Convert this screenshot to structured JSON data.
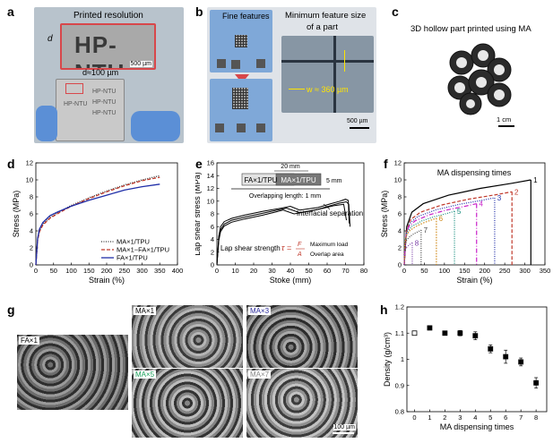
{
  "panels": {
    "a": {
      "label": "a",
      "title": "Printed resolution",
      "d_label": "d",
      "d_value": "d≈100 µm",
      "print_text": "HP-NTU",
      "scale": "500 µm",
      "plate_texts": [
        "HP-NTU",
        "HP-NTU",
        "HP-NTU",
        "HP-NTU"
      ]
    },
    "b": {
      "label": "b",
      "fine_features": "Fine features",
      "min_feature_title_1": "Minimum feature size",
      "min_feature_title_2": "of a part",
      "w_label": "w ≈ 360 µm",
      "scale": "500 µm"
    },
    "c": {
      "label": "c",
      "title": "3D hollow part printed using MA",
      "scale": "1 cm"
    },
    "g": {
      "label": "g",
      "images": [
        {
          "label": "FA×1",
          "color": "#000000"
        },
        {
          "label": "MA×1",
          "color": "#000000"
        },
        {
          "label": "MA×3",
          "color": "#2a2a9a"
        },
        {
          "label": "MA×5",
          "color": "#1aa05a"
        },
        {
          "label": "MA×7",
          "color": "#888888"
        }
      ],
      "scale": "100 µm"
    }
  },
  "chart_data": [
    {
      "panel": "d",
      "type": "line",
      "xlabel": "Strain (%)",
      "ylabel": "Stress (MPa)",
      "xlim": [
        0,
        400
      ],
      "ylim": [
        0,
        12
      ],
      "xticks": [
        0,
        50,
        100,
        150,
        200,
        250,
        300,
        350,
        400
      ],
      "yticks": [
        0,
        2,
        4,
        6,
        8,
        10,
        12
      ],
      "legend_position": "bottom-right",
      "series": [
        {
          "name": "MA×1/TPU",
          "color": "#333333",
          "dash": "1,1.5",
          "x": [
            0,
            5,
            10,
            20,
            40,
            60,
            100,
            150,
            200,
            250,
            300,
            350
          ],
          "y": [
            0,
            3.0,
            4.0,
            4.8,
            5.6,
            6.1,
            7.0,
            7.9,
            8.7,
            9.4,
            10.0,
            10.5
          ]
        },
        {
          "name": "MA×1−FA×1/TPU",
          "color": "#c0392b",
          "dash": "4,2",
          "x": [
            0,
            5,
            10,
            20,
            40,
            60,
            100,
            150,
            200,
            250,
            300,
            350
          ],
          "y": [
            0,
            2.9,
            3.9,
            4.7,
            5.5,
            6.0,
            6.9,
            7.8,
            8.6,
            9.3,
            9.9,
            10.3
          ]
        },
        {
          "name": "FA×1/TPU",
          "color": "#1f2ea8",
          "dash": "",
          "x": [
            0,
            5,
            10,
            20,
            40,
            60,
            100,
            150,
            200,
            250,
            300,
            350
          ],
          "y": [
            0,
            3.1,
            4.2,
            5.0,
            5.8,
            6.2,
            6.9,
            7.6,
            8.2,
            8.8,
            9.2,
            9.5
          ]
        }
      ]
    },
    {
      "panel": "e",
      "type": "line",
      "xlabel": "Stoke (mm)",
      "ylabel": "Lap shear stress (MPa)",
      "xlim": [
        0,
        80
      ],
      "ylim": [
        0,
        16
      ],
      "xticks": [
        0,
        10,
        20,
        30,
        40,
        50,
        60,
        70,
        80
      ],
      "yticks": [
        0,
        2,
        4,
        6,
        8,
        10,
        12,
        14,
        16
      ],
      "annotations": {
        "interfacial": "Interfacial separation",
        "lap_strength": "Lap shear strength",
        "formula_tau": "τ =",
        "formula_F": "F",
        "formula_A": "A",
        "max_load": "Maximum load",
        "overlap_area": "Overlap area",
        "overlap_length": "Overlapping length: 1 mm",
        "dim_20": "20 mm",
        "dim_5": "5 mm",
        "spec_left": "FA×1/TPU",
        "spec_right": "MA×1/TPU"
      },
      "series": [
        {
          "name": "curve-1",
          "color": "#000000",
          "x": [
            0,
            1,
            2,
            4,
            8,
            15,
            25,
            35,
            40,
            45,
            55,
            62,
            67,
            70,
            71.5,
            72
          ],
          "y": [
            0,
            4.5,
            6.0,
            6.8,
            7.3,
            7.8,
            8.4,
            8.9,
            9.2,
            8.6,
            9.0,
            9.6,
            10.0,
            10.3,
            10.1,
            6.5
          ]
        },
        {
          "name": "curve-2",
          "color": "#000000",
          "x": [
            0,
            1,
            2,
            4,
            8,
            15,
            25,
            33,
            38,
            45,
            55,
            62,
            67,
            70.5,
            71.8,
            72.5
          ],
          "y": [
            0,
            4.0,
            5.5,
            6.4,
            7.0,
            7.5,
            8.1,
            8.6,
            8.9,
            8.2,
            8.7,
            9.3,
            9.7,
            9.9,
            9.5,
            6.0
          ]
        },
        {
          "name": "curve-3",
          "color": "#000000",
          "x": [
            0,
            1,
            2,
            4,
            8,
            15,
            25,
            32,
            36,
            42,
            50,
            58,
            64,
            69,
            70.5
          ],
          "y": [
            0,
            3.8,
            5.2,
            6.1,
            6.7,
            7.2,
            7.8,
            8.3,
            8.6,
            8.0,
            8.4,
            8.9,
            9.3,
            9.5,
            7.0
          ]
        }
      ]
    },
    {
      "panel": "f",
      "type": "line",
      "title": "MA dispensing times",
      "xlabel": "Strain (%)",
      "ylabel": "Stress (MPa)",
      "xlim": [
        0,
        350
      ],
      "ylim": [
        0,
        12
      ],
      "xticks": [
        0,
        50,
        100,
        150,
        200,
        250,
        300,
        350
      ],
      "yticks": [
        0,
        2,
        4,
        6,
        8,
        10,
        12
      ],
      "series": [
        {
          "name": "1",
          "color": "#000000",
          "dash": "",
          "end_x": 315,
          "end_y": 10.0
        },
        {
          "name": "2",
          "color": "#c0392b",
          "dash": "4,2",
          "end_x": 268,
          "end_y": 8.6
        },
        {
          "name": "3",
          "color": "#1f2ea8",
          "dash": "1,1.5",
          "end_x": 225,
          "end_y": 7.9
        },
        {
          "name": "4",
          "color": "#c81fc8",
          "dash": "5,2,1,2",
          "end_x": 180,
          "end_y": 7.2
        },
        {
          "name": "5",
          "color": "#0f8a7a",
          "dash": "1,1.5",
          "end_x": 125,
          "end_y": 6.3
        },
        {
          "name": "6",
          "color": "#d08a1a",
          "dash": "1.5,1.5",
          "end_x": 80,
          "end_y": 5.5
        },
        {
          "name": "7",
          "color": "#444444",
          "dash": "1,1.5",
          "end_x": 42,
          "end_y": 4.1
        },
        {
          "name": "8",
          "color": "#7a3ea8",
          "dash": "1,1.5",
          "end_x": 20,
          "end_y": 2.6
        }
      ]
    },
    {
      "panel": "h",
      "type": "scatter",
      "xlabel": "MA dispensing times",
      "ylabel": "Density (g/cm³)",
      "xlim": [
        -0.5,
        8.7
      ],
      "ylim": [
        0.8,
        1.2
      ],
      "xticks": [
        0,
        1,
        2,
        3,
        4,
        5,
        6,
        7,
        8
      ],
      "yticks": [
        0.8,
        0.9,
        1.0,
        1.1,
        1.2
      ],
      "x": [
        0,
        1,
        2,
        3,
        4,
        5,
        6,
        7,
        8
      ],
      "y": [
        1.1,
        1.12,
        1.1,
        1.1,
        1.09,
        1.04,
        1.01,
        0.99,
        0.91
      ],
      "err": [
        0,
        0,
        0,
        0.01,
        0.015,
        0.015,
        0.025,
        0.015,
        0.02
      ],
      "open_marker_index": 0
    }
  ]
}
